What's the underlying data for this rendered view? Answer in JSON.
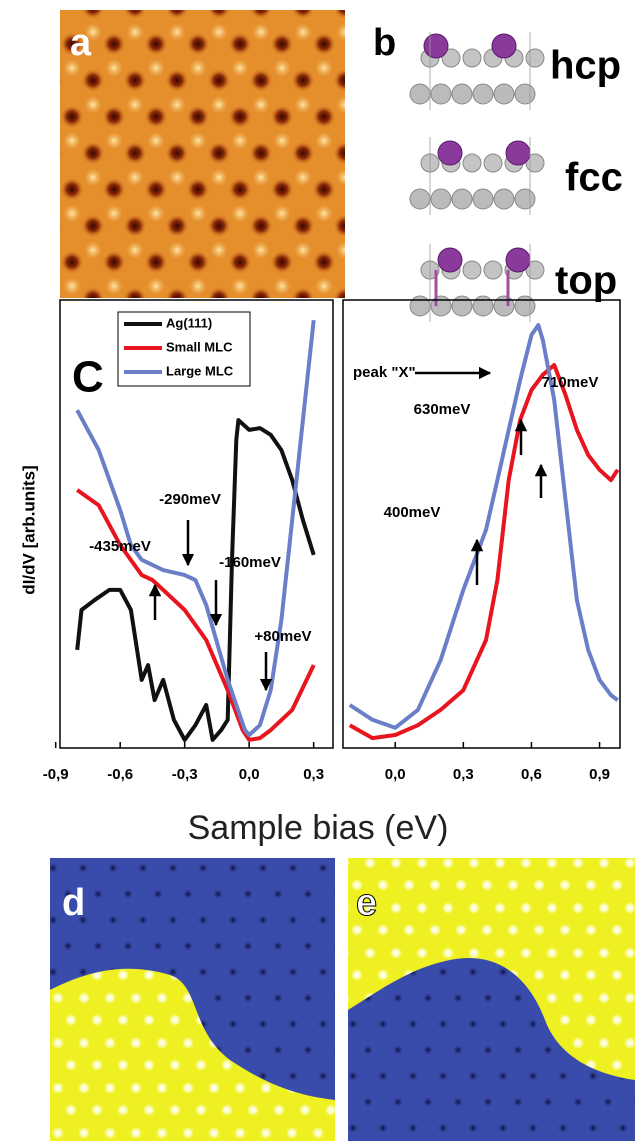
{
  "panel_labels": [
    "a",
    "b",
    "C",
    "d",
    "e"
  ],
  "structures": [
    "hcp",
    "fcc",
    "top"
  ],
  "xlabel": "Sample bias (eV)",
  "chart_data": [
    {
      "type": "line",
      "ylabel": "dI/dV [arb.units]",
      "xlim": [
        -0.88,
        0.39
      ],
      "ylim": [
        0,
        100
      ],
      "xticks": [
        {
          "value": -0.9,
          "label": "-0,9"
        },
        {
          "value": -0.6,
          "label": "-0,6"
        },
        {
          "value": -0.3,
          "label": "-0,3"
        },
        {
          "value": 0,
          "label": "0,0"
        },
        {
          "value": 0.3,
          "label": "0,3"
        }
      ],
      "legend": "top",
      "series": [
        {
          "name": "Ag(111)",
          "color": "#111111",
          "x": [
            -0.8,
            -0.78,
            -0.72,
            -0.65,
            -0.6,
            -0.55,
            -0.5,
            -0.47,
            -0.44,
            -0.4,
            -0.35,
            -0.3,
            -0.25,
            -0.2,
            -0.17,
            -0.13,
            -0.1,
            -0.08,
            -0.06,
            -0.05,
            0.0,
            0.05,
            0.1,
            0.15,
            0.2,
            0.25,
            0.3
          ],
          "values": [
            21.9,
            30.8,
            33.0,
            35.3,
            35.3,
            30.8,
            15.2,
            18.5,
            10.7,
            15.2,
            6.3,
            1.8,
            5.1,
            9.6,
            1.8,
            4.0,
            6.3,
            42.0,
            68.8,
            73.2,
            71.0,
            71.4,
            69.9,
            66.5,
            59.8,
            50.9,
            43.1
          ]
        },
        {
          "name": "Small MLC",
          "color": "#e8141e",
          "x": [
            -0.8,
            -0.7,
            -0.6,
            -0.5,
            -0.45,
            -0.4,
            -0.3,
            -0.2,
            -0.1,
            -0.03,
            0.0,
            0.05,
            0.1,
            0.2,
            0.3
          ],
          "values": [
            57.6,
            54.2,
            45.3,
            38.6,
            37.5,
            35.3,
            30.8,
            24.1,
            12.9,
            4.0,
            1.8,
            2.2,
            4.0,
            8.5,
            18.5
          ]
        },
        {
          "name": "Large MLC",
          "color": "#6a7fc8",
          "x": [
            -0.8,
            -0.7,
            -0.6,
            -0.55,
            -0.5,
            -0.4,
            -0.3,
            -0.25,
            -0.2,
            -0.1,
            -0.02,
            0.0,
            0.05,
            0.1,
            0.15,
            0.2,
            0.25,
            0.3
          ],
          "values": [
            75.4,
            66.5,
            53.1,
            45.3,
            42.0,
            39.7,
            38.6,
            37.5,
            31.9,
            15.2,
            4.0,
            2.9,
            5.1,
            12.9,
            28.6,
            50.9,
            73.2,
            95.5
          ]
        }
      ],
      "annotations": [
        "-290meV",
        "-435meV",
        "-160meV",
        "+80meV"
      ]
    },
    {
      "type": "line",
      "xlim": [
        -0.23,
        0.99
      ],
      "ylim": [
        0,
        100
      ],
      "xticks": [
        {
          "value": 0,
          "label": "0,0"
        },
        {
          "value": 0.3,
          "label": "0,3"
        },
        {
          "value": 0.6,
          "label": "0,6"
        },
        {
          "value": 0.9,
          "label": "0,9"
        }
      ],
      "series": [
        {
          "color": "#e8141e",
          "x": [
            -0.2,
            -0.1,
            0.0,
            0.1,
            0.2,
            0.3,
            0.4,
            0.45,
            0.5,
            0.55,
            0.6,
            0.65,
            0.7,
            0.75,
            0.8,
            0.85,
            0.9,
            0.95,
            0.98
          ],
          "values": [
            5.1,
            2.2,
            2.9,
            5.1,
            8.5,
            12.9,
            24.1,
            37.5,
            59.8,
            73.2,
            79.9,
            83.3,
            85.5,
            78.8,
            71.0,
            65.4,
            62.1,
            59.8,
            62.1
          ]
        },
        {
          "color": "#6a7fc8",
          "x": [
            -0.2,
            -0.1,
            0.0,
            0.1,
            0.2,
            0.3,
            0.4,
            0.45,
            0.5,
            0.55,
            0.6,
            0.63,
            0.65,
            0.7,
            0.75,
            0.8,
            0.85,
            0.9,
            0.95,
            0.98
          ],
          "values": [
            9.6,
            6.3,
            4.5,
            8.5,
            19.6,
            35.3,
            48.7,
            59.8,
            71.0,
            82.1,
            92.2,
            94.4,
            91.1,
            77.7,
            55.4,
            33.0,
            21.9,
            15.2,
            11.8,
            10.7
          ]
        }
      ],
      "annotations": [
        "peak \"X\"",
        "710meV",
        "630meV",
        "400meV"
      ]
    }
  ]
}
